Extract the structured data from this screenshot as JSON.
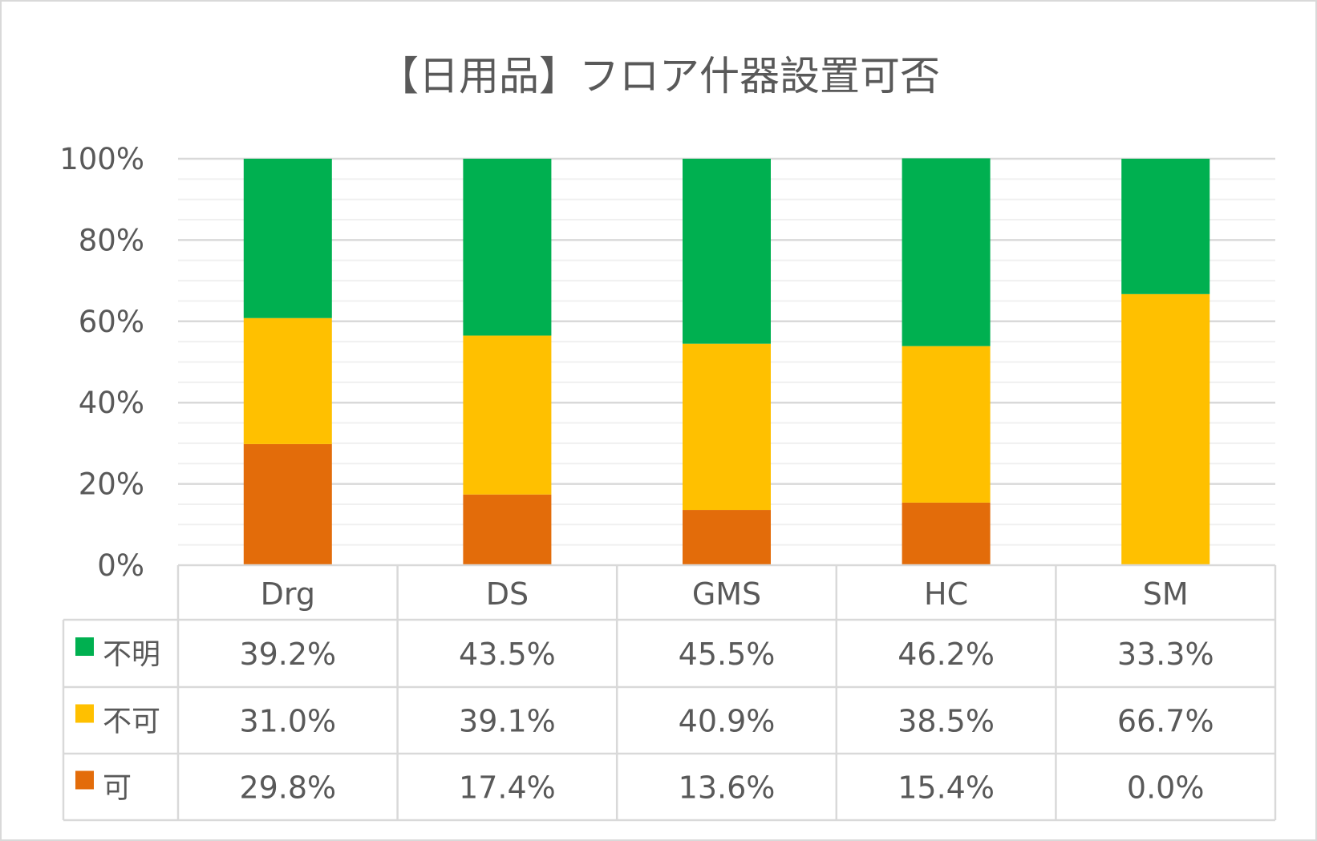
{
  "chart_data": {
    "type": "bar",
    "stacked": true,
    "title": "【日用品】フロア什器設置可否",
    "categories": [
      "Drg",
      "DS",
      "GMS",
      "HC",
      "SM"
    ],
    "series": [
      {
        "name": "可",
        "color": "#E36C0A",
        "values": [
          29.8,
          17.4,
          13.6,
          15.4,
          0.0
        ],
        "labels": [
          "29.8%",
          "17.4%",
          "13.6%",
          "15.4%",
          "0.0%"
        ]
      },
      {
        "name": "不可",
        "color": "#FFC000",
        "values": [
          31.0,
          39.1,
          40.9,
          38.5,
          66.7
        ],
        "labels": [
          "31.0%",
          "39.1%",
          "40.9%",
          "38.5%",
          "66.7%"
        ]
      },
      {
        "name": "不明",
        "color": "#00B050",
        "values": [
          39.2,
          43.5,
          45.5,
          46.2,
          33.3
        ],
        "labels": [
          "39.2%",
          "43.5%",
          "45.5%",
          "46.2%",
          "33.3%"
        ]
      }
    ],
    "table_row_order": [
      "不明",
      "不可",
      "可"
    ],
    "ylim": [
      0,
      100
    ],
    "yticks": [
      "0%",
      "20%",
      "40%",
      "60%",
      "80%",
      "100%"
    ],
    "xlabel": "",
    "ylabel": "",
    "grid": true,
    "legend_placement": "data-table"
  }
}
